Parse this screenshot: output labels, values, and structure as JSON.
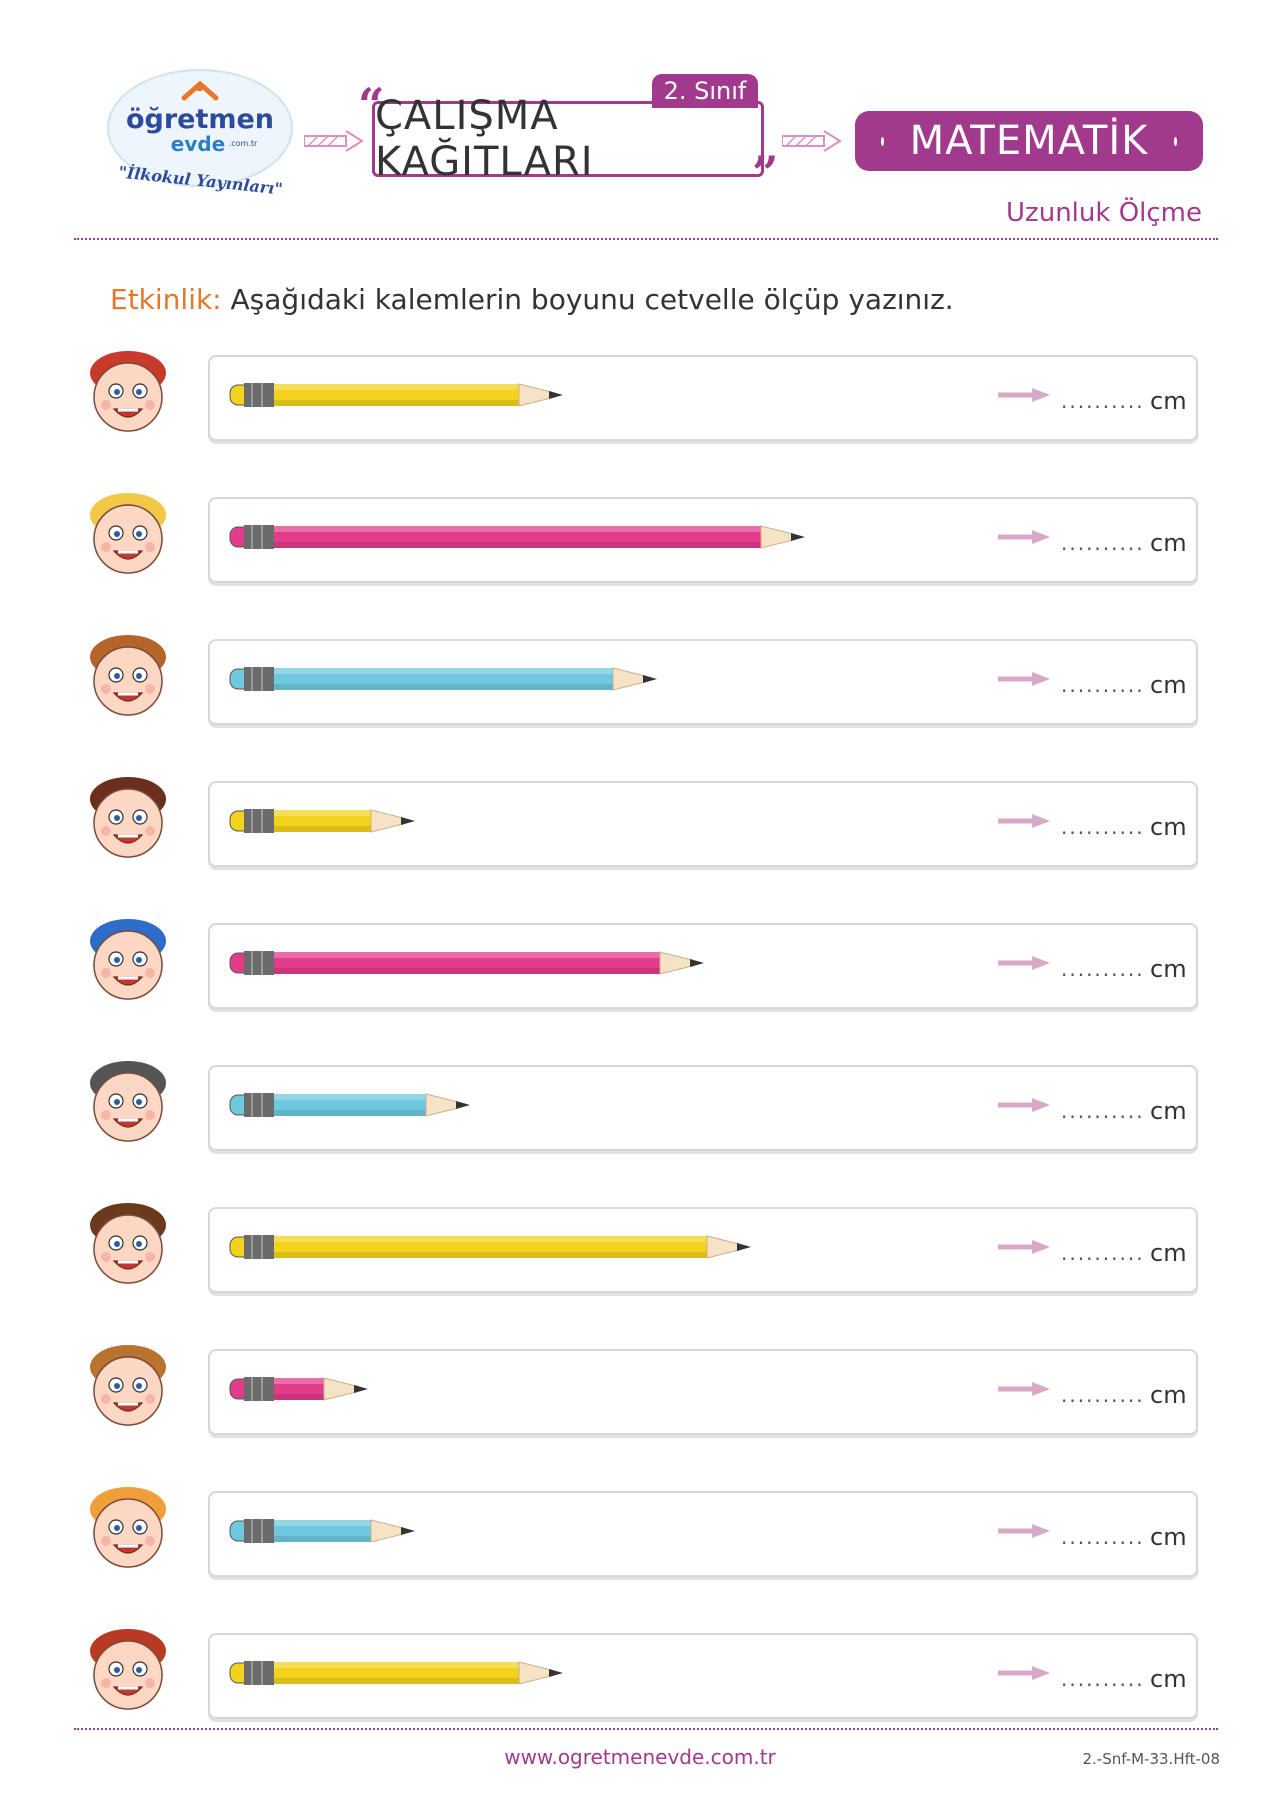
{
  "header": {
    "logo_main": "öğretmen",
    "logo_sub": "evde",
    "logo_domain": ".com.tr",
    "logo_tagline": "\"İlkokul Yayınları\"",
    "grade": "2. Sınıf",
    "title": "ÇALIŞMA KAĞITLARI",
    "subject": "MATEMATİK",
    "topic": "Uzunluk Ölçme"
  },
  "instruction": {
    "label": "Etkinlik:",
    "text": "Aşağıdaki kalemlerin boyunu cetvelle ölçüp yazınız."
  },
  "answer_placeholder": "..........",
  "unit": "cm",
  "pencils": [
    {
      "color": "#f3d21e",
      "length_fraction": 0.43
    },
    {
      "color": "#e23c8a",
      "length_fraction": 0.74
    },
    {
      "color": "#6ec8de",
      "length_fraction": 0.55
    },
    {
      "color": "#f3d21e",
      "length_fraction": 0.24
    },
    {
      "color": "#e23c8a",
      "length_fraction": 0.61
    },
    {
      "color": "#6ec8de",
      "length_fraction": 0.31
    },
    {
      "color": "#f3d21e",
      "length_fraction": 0.67
    },
    {
      "color": "#e23c8a",
      "length_fraction": 0.18
    },
    {
      "color": "#6ec8de",
      "length_fraction": 0.24
    },
    {
      "color": "#f3d21e",
      "length_fraction": 0.43
    }
  ],
  "footer": {
    "url": "www.ogretmenevde.com.tr",
    "code": "2.-Snf-M-33.Hft-08"
  }
}
